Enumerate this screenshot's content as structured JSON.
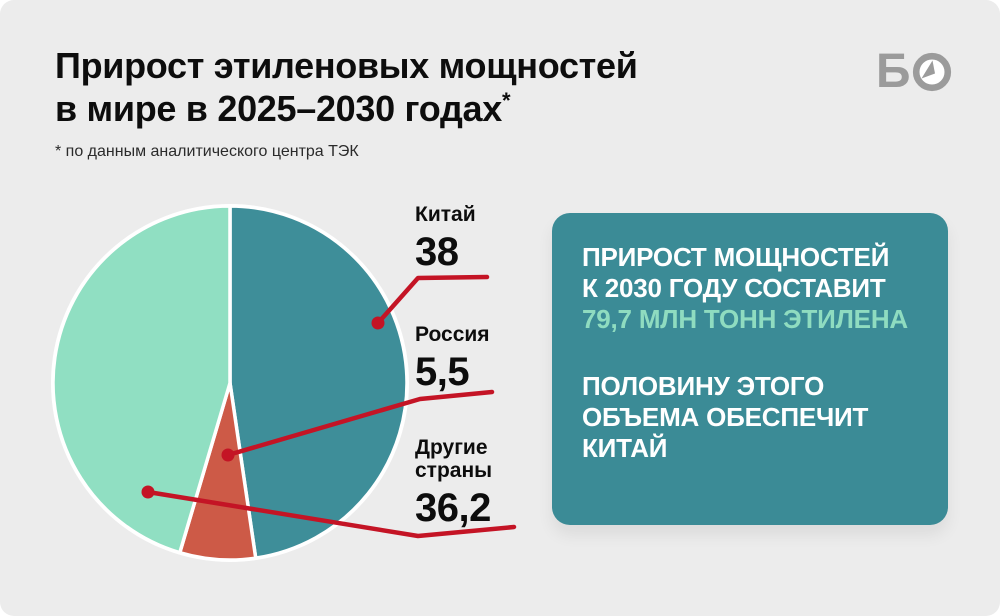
{
  "page": {
    "background": "#ffffff",
    "card_background": "#ececec"
  },
  "header": {
    "title_line1": "Прирост этиленовых мощностей",
    "title_line2": "в мире в 2025–2030 годах",
    "title_asterisk": "*",
    "footnote": "* по данным аналитического центра ТЭК",
    "logo": {
      "letter": "Б",
      "icon": "clock-icon",
      "color": "#9b9b9b"
    }
  },
  "chart_data": {
    "type": "pie",
    "title": "Прирост этиленовых мощностей в мире в 2025–2030 годах",
    "total": 79.7,
    "start_angle_deg": 0,
    "direction": "clockwise",
    "legend_position": "right-callouts",
    "slices": [
      {
        "label": "Китай",
        "value": 38,
        "display_value": "38",
        "color": "#3e8e99"
      },
      {
        "label": "Россия",
        "value": 5.5,
        "display_value": "5,5",
        "color": "#cd5a47"
      },
      {
        "label": "Другие страны",
        "value": 36.2,
        "display_value": "36,2",
        "color": "#90dfc2"
      }
    ],
    "callout_color": "#c41425",
    "slice_separator_color": "#ffffff"
  },
  "info_box": {
    "background": "#3b8b96",
    "highlight_color": "#8fdcc0",
    "p1_lines": [
      "ПРИРОСТ МОЩНОСТЕЙ",
      "К 2030 ГОДУ СОСТАВИТ"
    ],
    "p1_highlight": "79,7 МЛН ТОНН ЭТИЛЕНА",
    "p2_lines": [
      "ПОЛОВИНУ ЭТОГО",
      "ОБЪЕМА ОБЕСПЕЧИТ",
      "КИТАЙ"
    ]
  }
}
